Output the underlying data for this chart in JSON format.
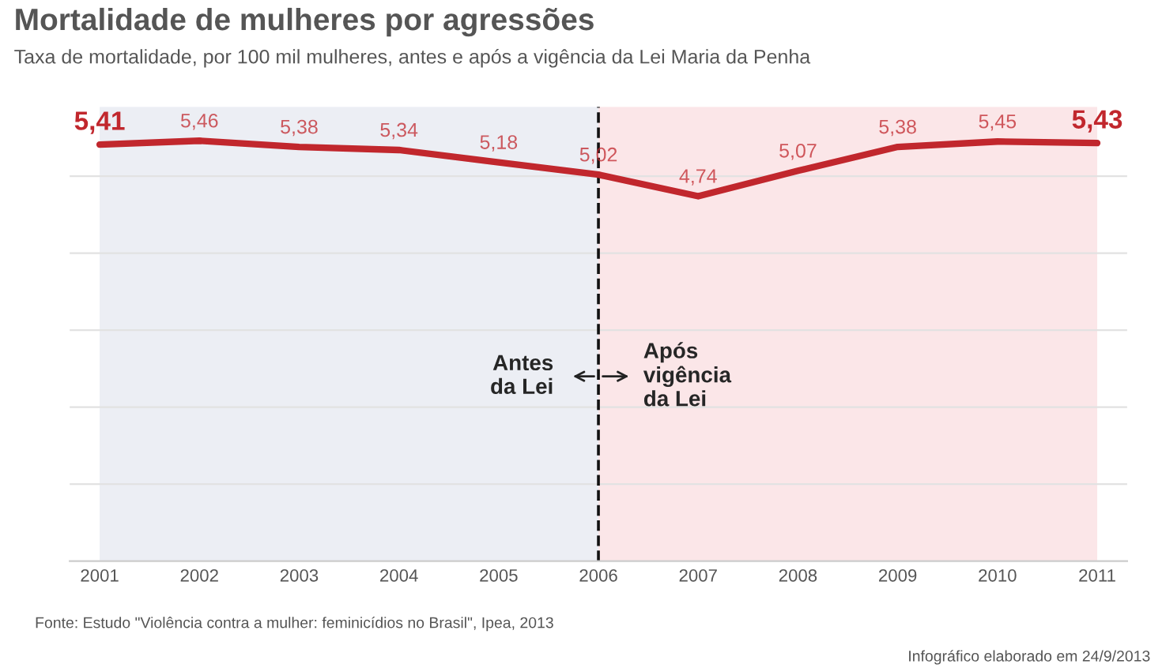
{
  "chart_data": {
    "type": "line",
    "title": "Mortalidade de mulheres por agressões",
    "subtitle": "Taxa de mortalidade, por 100 mil mulheres, antes e após a vigência da Lei Maria da Penha",
    "categories": [
      "2001",
      "2002",
      "2003",
      "2004",
      "2005",
      "2006",
      "2007",
      "2008",
      "2009",
      "2010",
      "2011"
    ],
    "series": [
      {
        "color": "#c1272d",
        "values": [
          5.41,
          5.46,
          5.38,
          5.34,
          5.18,
          5.02,
          4.74,
          5.07,
          5.38,
          5.45,
          5.43
        ],
        "value_labels": [
          "5,41",
          "5,46",
          "5,38",
          "5,34",
          "5,18",
          "5,02",
          "4,74",
          "5,07",
          "5,38",
          "5,45",
          "5,43"
        ]
      }
    ],
    "ylim": [
      0,
      5.9
    ],
    "yticks": [
      {
        "value": 1,
        "label": null
      },
      {
        "value": 2,
        "label": null
      },
      {
        "value": 3,
        "label": null
      },
      {
        "value": 4,
        "label": null
      },
      {
        "value": 5,
        "label": null
      }
    ],
    "tick_labels": "x",
    "grid": "y",
    "marker": "none",
    "line_style": "solid",
    "legend": false,
    "bands": [
      {
        "axis": "x",
        "from": "2001",
        "to": "2006",
        "color": "#eceef4"
      },
      {
        "axis": "x",
        "from": "2006",
        "to": "2011",
        "color": "#fbe6e8"
      }
    ],
    "ref_lines": [
      {
        "axis": "x",
        "value": "2006",
        "color": "#111111",
        "line_style": "dashed"
      }
    ],
    "annotations": [
      "Antes\nda Lei",
      "Após\nvigência\nda Lei",
      "Fonte: Estudo \"Violência contra a mulher: feminicídios no Brasil\", Ipea, 2013",
      "Infográfico elaborado em 24/9/2013"
    ]
  }
}
